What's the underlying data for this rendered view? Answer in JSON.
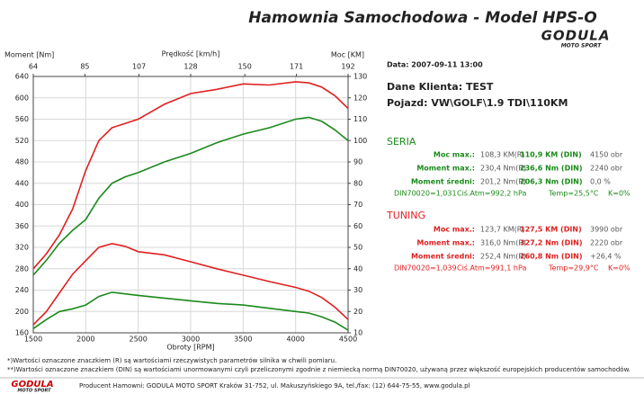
{
  "chart_data": {
    "type": "line",
    "x_label": "Obroty [RPM]",
    "x2_label": "Prędkość [km/h]",
    "y_label": "Moment [Nm]",
    "y2_label": "Moc [KM]",
    "x": [
      1500,
      1625,
      1750,
      1875,
      2000,
      2125,
      2250,
      2375,
      2500,
      2750,
      3000,
      3250,
      3500,
      3750,
      4000,
      4125,
      4250,
      4375,
      4500
    ],
    "xlim": [
      1500,
      4500
    ],
    "xticks": [
      1500,
      2000,
      2500,
      3000,
      3500,
      4000,
      4500
    ],
    "x2lim": [
      64,
      192
    ],
    "x2ticks": [
      64,
      85,
      107,
      128,
      150,
      171,
      192
    ],
    "ylim": [
      160,
      640
    ],
    "yticks": [
      160,
      200,
      240,
      280,
      320,
      360,
      400,
      440,
      480,
      520,
      560,
      600,
      640
    ],
    "y2lim": [
      10,
      130
    ],
    "y2ticks": [
      10,
      20,
      30,
      40,
      50,
      60,
      70,
      80,
      90,
      100,
      110,
      120,
      130
    ],
    "grid": true,
    "series": [
      {
        "color": "#e02020",
        "axis": "y2",
        "values": [
          40,
          47,
          56,
          68,
          86,
          100,
          106,
          108,
          110,
          117,
          122,
          124,
          126.5,
          126,
          127.5,
          127,
          125,
          121,
          115
        ]
      },
      {
        "color": "#1a8a1a",
        "axis": "y2",
        "values": [
          37,
          44,
          52,
          58,
          63,
          73,
          80,
          83,
          85,
          90,
          94,
          99,
          103,
          106,
          110,
          110.9,
          109,
          105,
          100
        ]
      },
      {
        "color": "#e02020",
        "axis": "y",
        "values": [
          175,
          200,
          235,
          270,
          295,
          320,
          327,
          322,
          312,
          306,
          293,
          280,
          268,
          256,
          245,
          238,
          226,
          208,
          185
        ]
      },
      {
        "color": "#1a8a1a",
        "axis": "y",
        "values": [
          168,
          185,
          200,
          205,
          212,
          228,
          236,
          233,
          230,
          225,
          220,
          215,
          212,
          206,
          200,
          197,
          190,
          180,
          165
        ]
      }
    ]
  },
  "header": {
    "title": "Hamownia Samochodowa   -   Model HPS-O",
    "logo": "GODULA",
    "logo_sub": "MOTO SPORT"
  },
  "info": {
    "date": "Data: 2007-09-11   13:00",
    "client": "Dane Klienta: TEST",
    "vehicle": "Pojazd: VW\\GOLF\\1.9 TDI\\110KM"
  },
  "seria": {
    "title": "SERIA",
    "rows": [
      [
        "Moc max.:",
        "108,3 KM(R)",
        "110,9 KM (DIN)",
        "4150 obr"
      ],
      [
        "Moment max.:",
        "230,4 Nm(R)",
        "236,6 Nm (DIN)",
        "2240 obr"
      ],
      [
        "Moment średni:",
        "201,2 Nm(R)",
        "206,3 Nm (DIN)",
        "0,0 %"
      ]
    ],
    "conditions": [
      "DIN70020=1,031",
      "Ciś.Atm=992,2 hPa",
      "Temp=25,5°C",
      "K=0%"
    ]
  },
  "tuning": {
    "title": "TUNING",
    "rows": [
      [
        "Moc max.:",
        "123,7 KM(R)",
        "127,5 KM (DIN)",
        "3990 obr"
      ],
      [
        "Moment max.:",
        "316,0 Nm(R)",
        "327,2 Nm (DIN)",
        "2220 obr"
      ],
      [
        "Moment średni:",
        "252,4 Nm(R)",
        "260,8 Nm (DIN)",
        "+26,4 %"
      ]
    ],
    "conditions": [
      "DIN70020=1,039",
      "Ciś.Atm=991,1 hPa",
      "Temp=29,9°C",
      "K=0%"
    ]
  },
  "footnotes": [
    "*)Wartości oznaczone znaczkiem (R) są wartościami rzeczywistych parametrów silnika w chwili pomiaru.",
    "**)Wartości oznaczone znaczkiem (DIN) są wartościami unormowanymi czyli przeliczonymi zgodnie z niemiecką normą DIN70020, używaną przez większość europejskich producentów samochodów."
  ],
  "footer": {
    "logo": "GODULA",
    "logo_sub": "MOTO SPORT",
    "text": "Producent Hamowni: GODULA MOTO SPORT Kraków 31-752, ul. Makuszyńskiego 9A, tel./fax: (12) 644-75-55, www.godula.pl"
  }
}
